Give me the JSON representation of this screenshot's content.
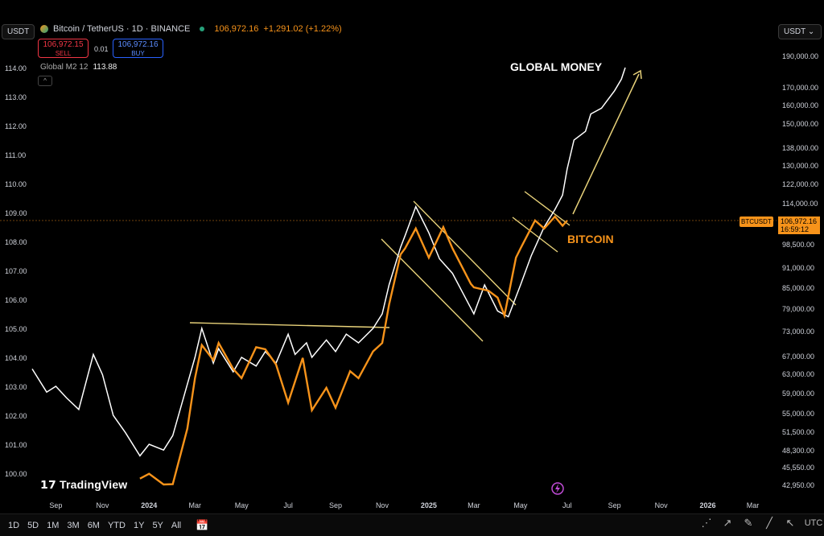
{
  "header": {
    "symbol": "Bitcoin / TetherUS · 1D · BINANCE",
    "price": "106,972.16",
    "change": "+1,291.02 (+1.22%)",
    "sell_price": "106,972.15",
    "sell_label": "SELL",
    "buy_price": "106,972.16",
    "buy_label": "BUY",
    "spread": "0.01",
    "left_currency": "USDT",
    "right_currency": "USDT"
  },
  "legend": {
    "series_name": "Global M2 12",
    "series_value": "113.88"
  },
  "annotations": {
    "global_money": "GLOBAL MONEY",
    "bitcoin": "BITCOIN"
  },
  "price_tag": {
    "symbol": "BTCUSDT",
    "price": "106,972.16",
    "countdown": "16:59:12"
  },
  "branding": "TradingView",
  "timeframes": [
    "1D",
    "5D",
    "1M",
    "3M",
    "6M",
    "YTD",
    "1Y",
    "5Y",
    "All"
  ],
  "timezone": "UTC",
  "chart_data": {
    "type": "line",
    "left_axis": {
      "label": "",
      "ticks": [
        100.0,
        101.0,
        102.0,
        103.0,
        104.0,
        105.0,
        106.0,
        107.0,
        108.0,
        109.0,
        110.0,
        111.0,
        112.0,
        113.0,
        114.0
      ]
    },
    "right_axis": {
      "label": "",
      "ticks": [
        "190,000.00",
        "170,000.00",
        "160,000.00",
        "150,000.00",
        "138,000.00",
        "130,000.00",
        "122,000.00",
        "114,000.00",
        "98,500.00",
        "91,000.00",
        "85,000.00",
        "79,000.00",
        "73,000.00",
        "67,000.00",
        "63,000.00",
        "59,000.00",
        "55,000.00",
        "51,500.00",
        "48,300.00",
        "45,550.00",
        "42,950.00"
      ]
    },
    "x_ticks": [
      "Sep",
      "Nov",
      "2024",
      "Mar",
      "May",
      "Jul",
      "Sep",
      "Nov",
      "2025",
      "Mar",
      "May",
      "Jul",
      "Sep",
      "Nov",
      "2026",
      "Mar"
    ],
    "series": [
      {
        "name": "Global M2 12",
        "color": "#ffffff",
        "axis": "left",
        "points": [
          [
            "2023-08",
            103.6
          ],
          [
            "2023-08-20",
            102.8
          ],
          [
            "2023-09",
            103.0
          ],
          [
            "2023-09-15",
            102.6
          ],
          [
            "2023-10",
            102.2
          ],
          [
            "2023-10-20",
            104.1
          ],
          [
            "2023-11",
            103.4
          ],
          [
            "2023-11-15",
            102.0
          ],
          [
            "2023-12",
            101.4
          ],
          [
            "2023-12-20",
            100.6
          ],
          [
            "2024-01",
            101.0
          ],
          [
            "2024-01-20",
            100.8
          ],
          [
            "2024-02",
            101.3
          ],
          [
            "2024-02-15",
            102.6
          ],
          [
            "2024-03",
            104.0
          ],
          [
            "2024-03-10",
            105.0
          ],
          [
            "2024-03-25",
            103.8
          ],
          [
            "2024-04",
            104.3
          ],
          [
            "2024-04-20",
            103.5
          ],
          [
            "2024-05",
            104.0
          ],
          [
            "2024-05-20",
            103.7
          ],
          [
            "2024-06",
            104.2
          ],
          [
            "2024-06-15",
            103.8
          ],
          [
            "2024-07",
            104.8
          ],
          [
            "2024-07-10",
            104.1
          ],
          [
            "2024-07-25",
            104.5
          ],
          [
            "2024-08",
            104.0
          ],
          [
            "2024-08-20",
            104.6
          ],
          [
            "2024-09",
            104.2
          ],
          [
            "2024-09-15",
            104.8
          ],
          [
            "2024-10",
            104.5
          ],
          [
            "2024-10-20",
            105.0
          ],
          [
            "2024-11",
            105.5
          ],
          [
            "2024-11-10",
            106.5
          ],
          [
            "2024-11-25",
            107.8
          ],
          [
            "2024-12",
            108.2
          ],
          [
            "2024-12-15",
            109.2
          ],
          [
            "2025-01",
            108.3
          ],
          [
            "2025-01-15",
            107.4
          ],
          [
            "2025-02",
            106.9
          ],
          [
            "2025-02-15",
            106.2
          ],
          [
            "2025-03",
            105.5
          ],
          [
            "2025-03-15",
            106.5
          ],
          [
            "2025-04",
            105.6
          ],
          [
            "2025-04-15",
            105.4
          ],
          [
            "2025-05",
            106.5
          ],
          [
            "2025-05-15",
            107.5
          ],
          [
            "2025-06",
            108.5
          ],
          [
            "2025-06-15",
            109.1
          ],
          [
            "2025-06-25",
            109.6
          ],
          [
            "2025-07",
            110.5
          ],
          [
            "2025-07-10",
            111.5
          ],
          [
            "2025-07-25",
            111.8
          ],
          [
            "2025-08",
            112.4
          ],
          [
            "2025-08-15",
            112.6
          ],
          [
            "2025-09",
            113.2
          ],
          [
            "2025-09-10",
            113.6
          ],
          [
            "2025-09-15",
            114.0
          ]
        ]
      },
      {
        "name": "Bitcoin / TetherUS",
        "color": "#f7931a",
        "axis": "right",
        "points": [
          [
            "2023-12-20",
            43800
          ],
          [
            "2024-01",
            44500
          ],
          [
            "2024-01-20",
            41800
          ],
          [
            "2024-02",
            43000
          ],
          [
            "2024-02-20",
            52000
          ],
          [
            "2024-03",
            62000
          ],
          [
            "2024-03-10",
            69500
          ],
          [
            "2024-03-25",
            66000
          ],
          [
            "2024-04",
            70000
          ],
          [
            "2024-04-20",
            64000
          ],
          [
            "2024-05",
            62000
          ],
          [
            "2024-05-20",
            69000
          ],
          [
            "2024-06",
            68500
          ],
          [
            "2024-06-15",
            65000
          ],
          [
            "2024-07",
            57000
          ],
          [
            "2024-07-20",
            66500
          ],
          [
            "2024-08",
            55500
          ],
          [
            "2024-08-20",
            60000
          ],
          [
            "2024-09",
            56000
          ],
          [
            "2024-09-20",
            63500
          ],
          [
            "2024-10",
            62000
          ],
          [
            "2024-10-20",
            68000
          ],
          [
            "2024-11",
            70000
          ],
          [
            "2024-11-10",
            80000
          ],
          [
            "2024-11-25",
            95000
          ],
          [
            "2024-12",
            97000
          ],
          [
            "2024-12-15",
            104000
          ],
          [
            "2025-01",
            94000
          ],
          [
            "2025-01-20",
            104500
          ],
          [
            "2025-02",
            97000
          ],
          [
            "2025-02-25",
            86000
          ],
          [
            "2025-03",
            85000
          ],
          [
            "2025-03-20",
            84000
          ],
          [
            "2025-04",
            82000
          ],
          [
            "2025-04-10",
            77000
          ],
          [
            "2025-04-25",
            94000
          ],
          [
            "2025-05",
            97000
          ],
          [
            "2025-05-20",
            107000
          ],
          [
            "2025-06",
            104000
          ],
          [
            "2025-06-15",
            108500
          ],
          [
            "2025-06-25",
            105000
          ],
          [
            "2025-07",
            106972
          ]
        ]
      }
    ]
  }
}
